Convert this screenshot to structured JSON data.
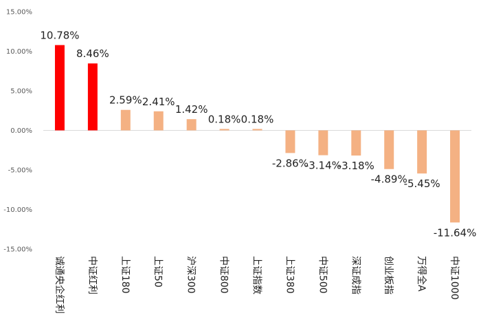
{
  "chart_data": {
    "type": "bar",
    "title": "",
    "xlabel": "",
    "ylabel": "",
    "categories": [
      "诚通央企红利",
      "中证红利",
      "上证180",
      "上证50",
      "沪深300",
      "中证800",
      "上证指数",
      "上证380",
      "中证500",
      "深证成指",
      "创业板指",
      "万得全A",
      "中证1000"
    ],
    "values": [
      10.78,
      8.46,
      2.59,
      2.41,
      1.42,
      0.18,
      0.18,
      -2.86,
      -3.14,
      -3.18,
      -4.89,
      -5.45,
      -11.64
    ],
    "value_labels": [
      "10.78%",
      "8.46%",
      "2.59%",
      "2.41%",
      "1.42%",
      "0.18%",
      "0.18%",
      "-2.86%",
      "-3.14%",
      "-3.18%",
      "-4.89%",
      "-5.45%",
      "-11.64%"
    ],
    "y_ticks": [
      15,
      10,
      5,
      0,
      -5,
      -10,
      -15
    ],
    "y_tick_labels": [
      "15.00%",
      "10.00%",
      "5.00%",
      "0.00%",
      "-5.00%",
      "-10.00%",
      "-15.00%"
    ],
    "ylim": [
      -15,
      15
    ],
    "grid": false,
    "legend": "none",
    "highlight_categories": [
      "诚通央企红利",
      "中证红利"
    ],
    "colors": {
      "highlight": "#ff0000",
      "default": "#f4b183"
    }
  }
}
